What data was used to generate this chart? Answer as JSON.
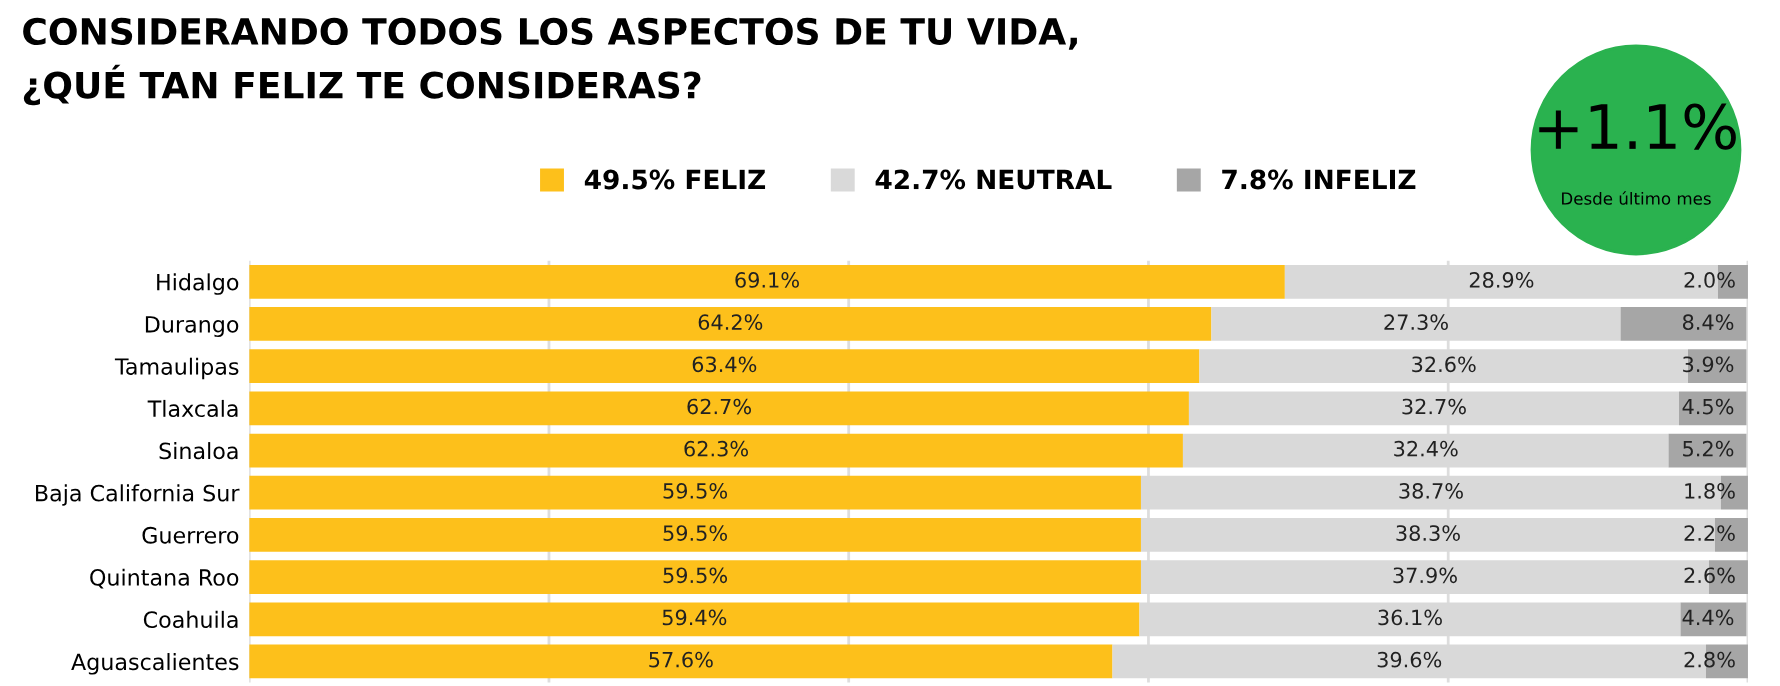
{
  "chart_data": {
    "type": "bar",
    "orientation": "horizontal",
    "stacked": true,
    "title": "CONSIDERANDO TODOS LOS ASPECTOS DE TU VIDA,\n¿QUÉ TAN FELIZ TE CONSIDERAS?",
    "categories": [
      "Hidalgo",
      "Durango",
      "Tamaulipas",
      "Tlaxcala",
      "Sinaloa",
      "Baja California Sur",
      "Guerrero",
      "Quintana Roo",
      "Coahuila",
      "Aguascalientes"
    ],
    "series": [
      {
        "name": "49.5% FELIZ",
        "color": "#fdc01b",
        "values": [
          69.1,
          64.2,
          63.4,
          62.7,
          62.3,
          59.5,
          59.5,
          59.5,
          59.4,
          57.6
        ],
        "value_labels": [
          "69.1%",
          "64.2%",
          "63.4%",
          "62.7%",
          "62.3%",
          "59.5%",
          "59.5%",
          "59.5%",
          "59.4%",
          "57.6%"
        ]
      },
      {
        "name": "42.7% NEUTRAL",
        "color": "#d9d9d9",
        "values": [
          28.9,
          27.3,
          32.6,
          32.7,
          32.4,
          38.7,
          38.3,
          37.9,
          36.1,
          39.6
        ],
        "value_labels": [
          "28.9%",
          "27.3%",
          "32.6%",
          "32.7%",
          "32.4%",
          "38.7%",
          "38.3%",
          "37.9%",
          "36.1%",
          "39.6%"
        ]
      },
      {
        "name": "7.8% INFELIZ",
        "color": "#a6a6a6",
        "values": [
          2.0,
          8.4,
          3.9,
          4.5,
          5.2,
          1.8,
          2.2,
          2.6,
          4.4,
          2.8
        ],
        "value_labels": [
          "2.0%",
          "8.4%",
          "3.9%",
          "4.5%",
          "5.2%",
          "1.8%",
          "2.2%",
          "2.6%",
          "4.4%",
          "2.8%"
        ]
      }
    ],
    "tick_labels": "y",
    "grid": "x",
    "legend": "top",
    "annotations": [
      "+1.1%",
      "Desde último mes"
    ]
  }
}
